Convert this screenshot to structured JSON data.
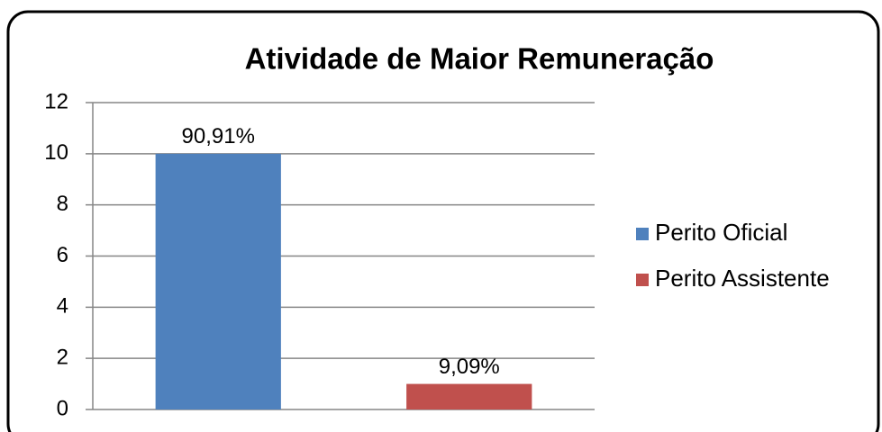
{
  "chart_data": {
    "type": "bar",
    "title": "Atividade de Maior Remuneração",
    "categories": [
      null
    ],
    "series": [
      {
        "name": "Perito Oficial",
        "color": "#4f81bd",
        "values": [
          10
        ],
        "value_labels": [
          "90,91%"
        ]
      },
      {
        "name": "Perito Assistente",
        "color": "#c0504d",
        "values": [
          1
        ],
        "value_labels": [
          "9,09%"
        ]
      }
    ],
    "ylim": [
      0,
      12
    ],
    "yticks": [
      0,
      2,
      4,
      6,
      8,
      10,
      12
    ],
    "grid": true,
    "legend": "right"
  }
}
